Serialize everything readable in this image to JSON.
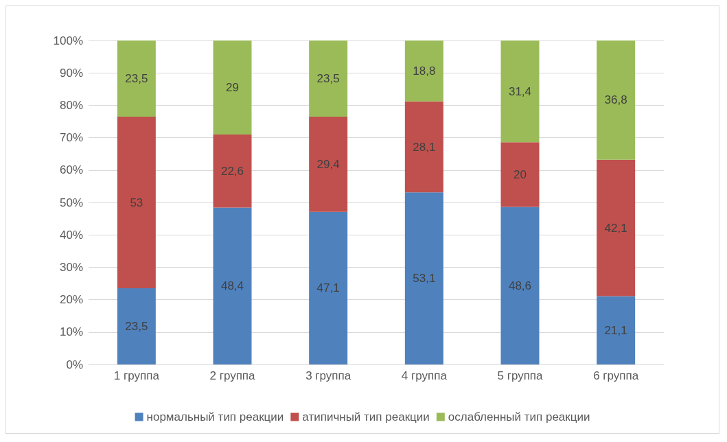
{
  "chart_data": {
    "type": "bar",
    "stacked": true,
    "categories": [
      "1 группа",
      "2 группа",
      "3 группа",
      "4 группа",
      "5 группа",
      "6 группа"
    ],
    "series": [
      {
        "name": "нормальный тип реакции",
        "color": "#4f81bd",
        "values": [
          23.5,
          48.4,
          47.1,
          53.1,
          48.6,
          21.1
        ],
        "value_labels": [
          "23,5",
          "48,4",
          "47,1",
          "53,1",
          "48,6",
          "21,1"
        ]
      },
      {
        "name": "атипичный тип реакции",
        "color": "#c0504d",
        "values": [
          53,
          22.6,
          29.4,
          28.1,
          20,
          42.1
        ],
        "value_labels": [
          "53",
          "22,6",
          "29,4",
          "28,1",
          "20",
          "42,1"
        ]
      },
      {
        "name": "ослабленный тип реакции",
        "color": "#9bbb59",
        "values": [
          23.5,
          29,
          23.5,
          18.8,
          31.4,
          36.8
        ],
        "value_labels": [
          "23,5",
          "29",
          "23,5",
          "18,8",
          "31,4",
          "36,8"
        ]
      }
    ],
    "ylim": [
      0,
      100
    ],
    "yticks": [
      {
        "value": 0,
        "label": "0%"
      },
      {
        "value": 10,
        "label": "10%"
      },
      {
        "value": 20,
        "label": "20%"
      },
      {
        "value": 30,
        "label": "30%"
      },
      {
        "value": 40,
        "label": "40%"
      },
      {
        "value": 50,
        "label": "50%"
      },
      {
        "value": 60,
        "label": "60%"
      },
      {
        "value": 70,
        "label": "70%"
      },
      {
        "value": 80,
        "label": "80%"
      },
      {
        "value": 90,
        "label": "90%"
      },
      {
        "value": 100,
        "label": "100%"
      }
    ],
    "grid": "y",
    "legend": "bottom"
  }
}
